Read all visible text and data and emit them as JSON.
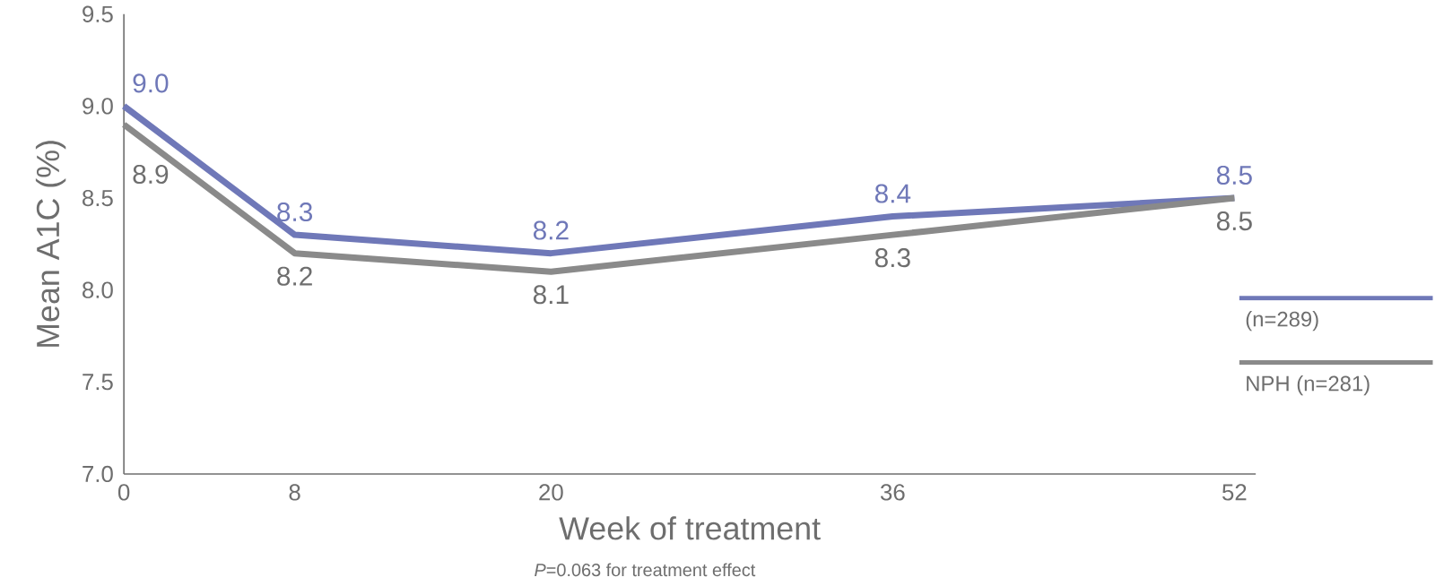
{
  "chart_data": {
    "type": "line",
    "xlabel": "Week of treatment",
    "ylabel": "Mean A1C (%)",
    "annotations": [
      "*P*=0.063 for treatment effect"
    ],
    "x": [
      0,
      8,
      20,
      36,
      52
    ],
    "series": [
      {
        "name": "(n=289)",
        "color": "#6f78b8",
        "values": [
          9.0,
          8.3,
          8.2,
          8.4,
          8.5
        ],
        "value_labels": [
          "9.0",
          "8.3",
          "8.2",
          "8.4",
          "8.5"
        ]
      },
      {
        "name": "NPH (n=281)",
        "color": "#8a8a8a",
        "values": [
          8.9,
          8.2,
          8.1,
          8.3,
          8.5
        ],
        "value_labels": [
          "8.9",
          "8.2",
          "8.1",
          "8.3",
          "8.5"
        ]
      }
    ],
    "xlim": [
      0,
      53
    ],
    "xticks": [
      0,
      8,
      20,
      36,
      52
    ],
    "ylim": [
      7.0,
      9.5
    ],
    "yticks": [
      {
        "value": 7.0,
        "label": "7.0"
      },
      {
        "value": 7.5,
        "label": "7.5"
      },
      {
        "value": 8.0,
        "label": "8.0"
      },
      {
        "value": 8.5,
        "label": "8.5"
      },
      {
        "value": 9.0,
        "label": "9.0"
      },
      {
        "value": 9.5,
        "label": "9.5"
      }
    ],
    "legend": "right",
    "grid": false,
    "marker": "none",
    "line_style": "solid"
  }
}
